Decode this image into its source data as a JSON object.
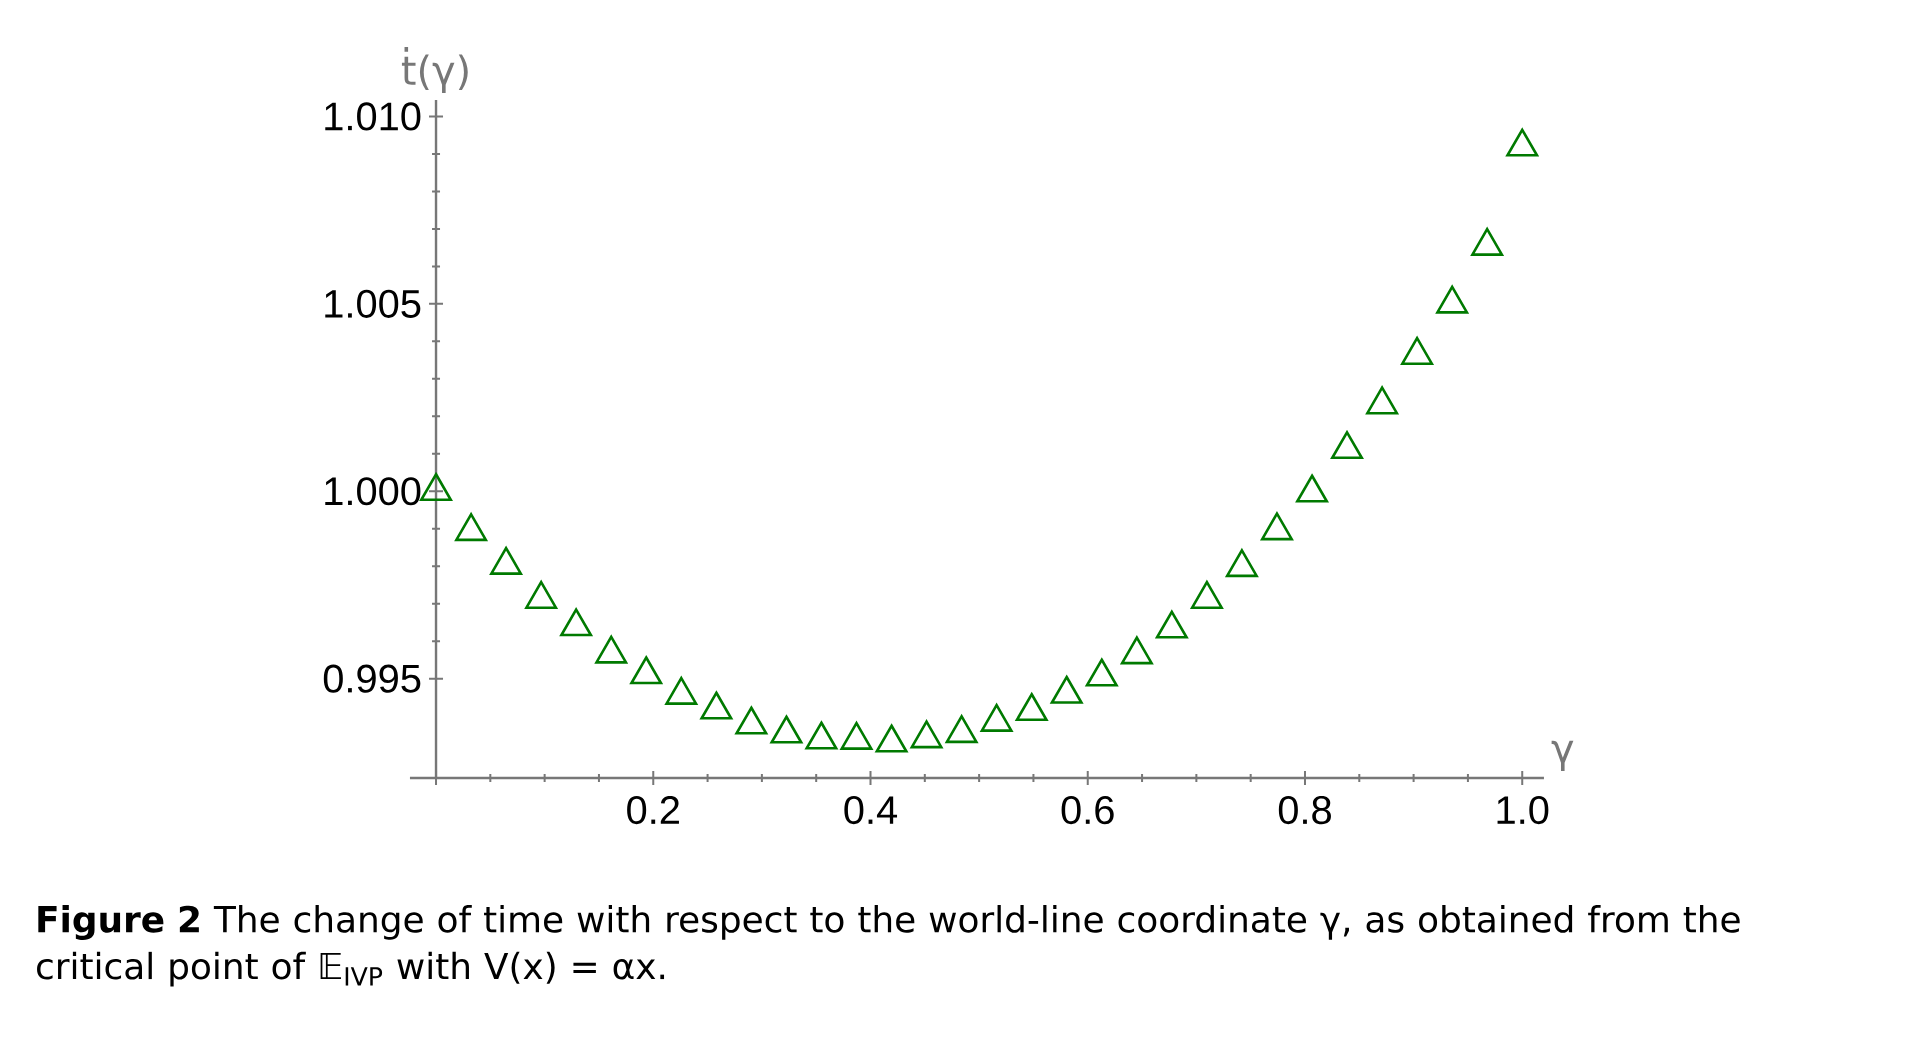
{
  "chart_data": {
    "type": "scatter",
    "xlabel": "γ",
    "ylabel": "ṫ(γ)",
    "annotations": [
      "**Figure 2** The change of time with respect to the world-line coordinate γ, as obtained from the critical point of 𝔼$_{IVP}$ with V(x) = αx."
    ],
    "x": [
      0,
      0.0323,
      0.0645,
      0.0968,
      0.129,
      0.1613,
      0.1935,
      0.2258,
      0.2581,
      0.2903,
      0.3226,
      0.3548,
      0.3871,
      0.4194,
      0.4516,
      0.4839,
      0.5161,
      0.5484,
      0.5806,
      0.6129,
      0.6452,
      0.6774,
      0.7097,
      0.7419,
      0.7742,
      0.8065,
      0.8387,
      0.871,
      0.9032,
      0.9355,
      0.9677,
      1.0
    ],
    "series": [
      {
        "color": "#007a00",
        "values": [
          1.0,
          0.99893,
          0.99803,
          0.99712,
          0.99639,
          0.99566,
          0.99511,
          0.99456,
          0.99417,
          0.99377,
          0.99353,
          0.99337,
          0.99336,
          0.99329,
          0.9934,
          0.99354,
          0.99384,
          0.99413,
          0.99459,
          0.99505,
          0.99564,
          0.99633,
          0.99712,
          0.99797,
          0.99895,
          0.99996,
          1.00112,
          1.00231,
          1.00363,
          1.005,
          1.00654,
          1.00919
        ]
      }
    ],
    "marker": "triangle",
    "xlim": [
      -0.024,
      1.02
    ],
    "ylim": [
      0.99235,
      1.01044
    ],
    "xticks": [
      {
        "value": 0,
        "label": null
      },
      0.2,
      0.4,
      0.6,
      0.8,
      {
        "value": 1.0,
        "label": "1.0"
      }
    ],
    "yticks": [
      0.995,
      {
        "value": 1.0,
        "label": "1.000"
      },
      1.005,
      {
        "value": 1.01,
        "label": "1.010"
      }
    ]
  }
}
